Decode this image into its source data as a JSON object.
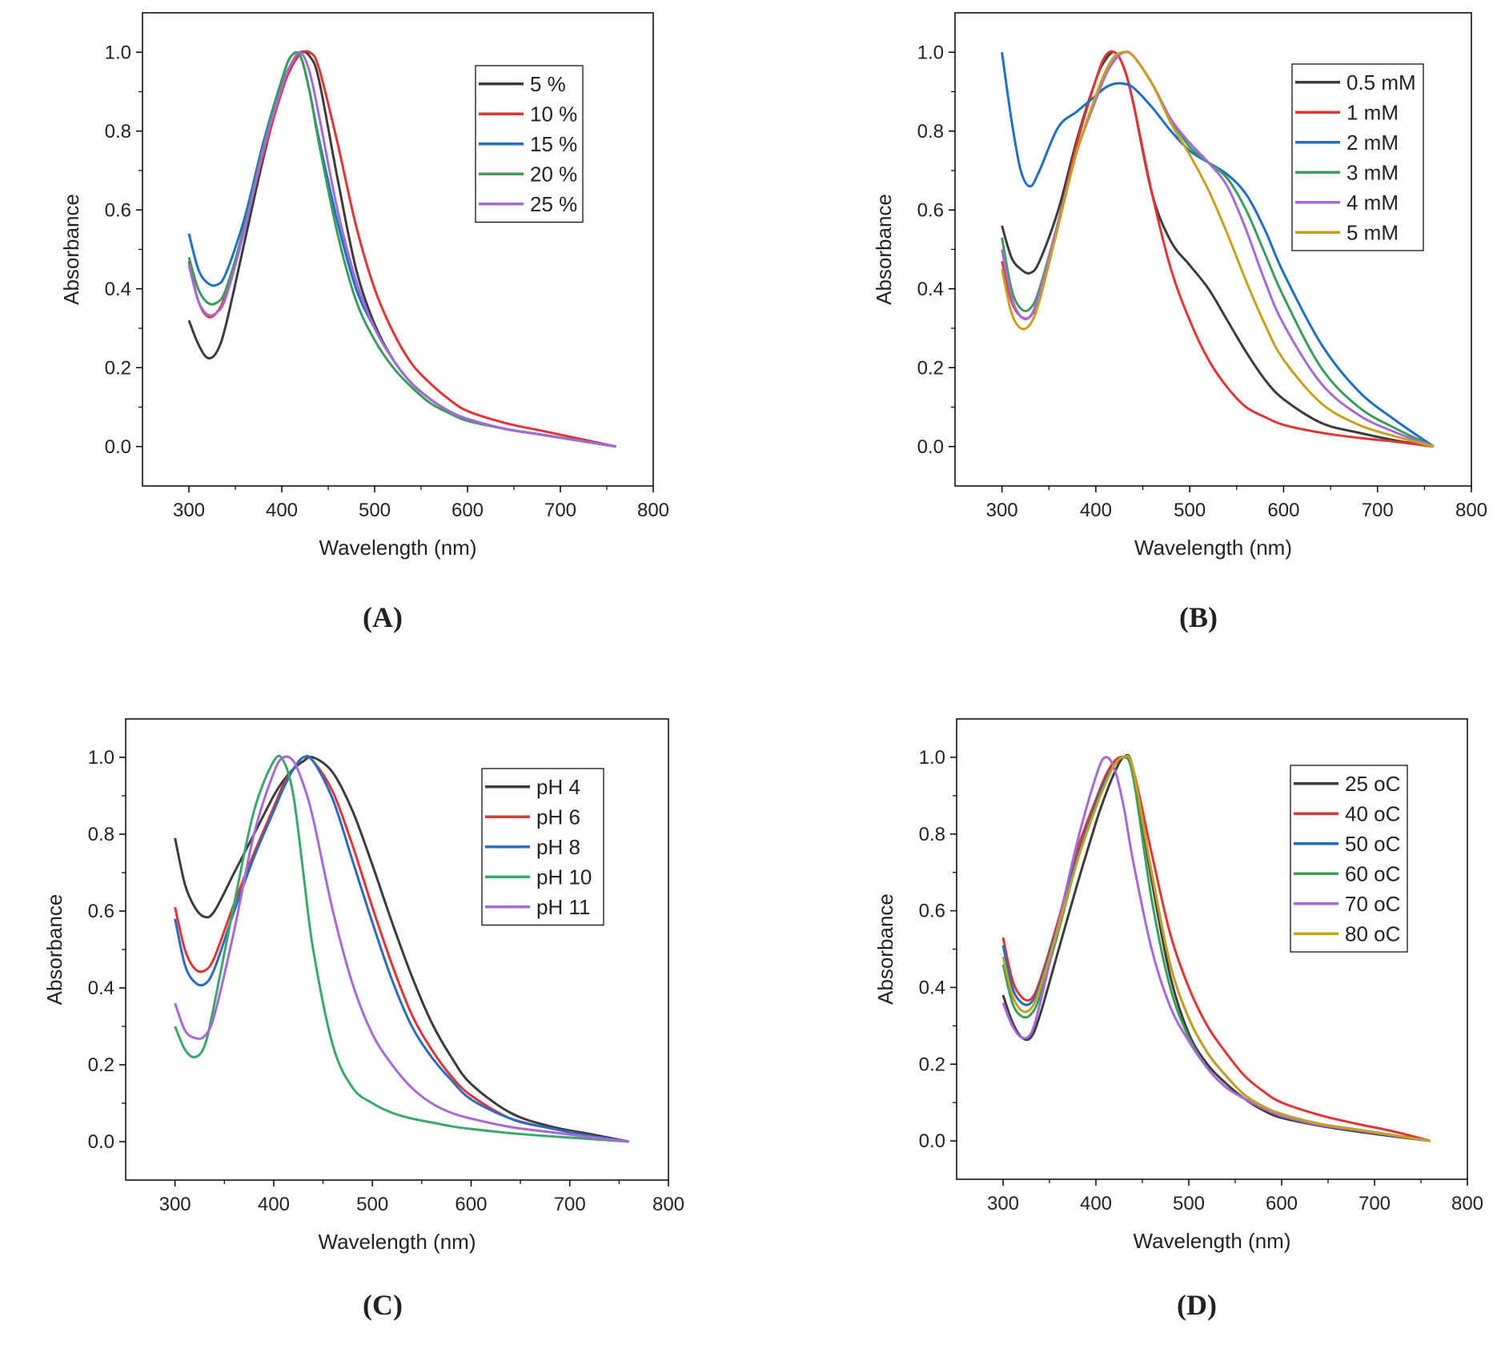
{
  "chart_data": [
    {
      "type": "line",
      "label": "(A)",
      "xlabel": "Wavelength (nm)",
      "ylabel": "Absorbance",
      "legend": "upper right",
      "xlim": [
        250,
        800
      ],
      "ylim": [
        -0.1,
        1.1
      ],
      "xticks": [
        300,
        400,
        500,
        600,
        700,
        800
      ],
      "yticks": [
        {
          "value": 0,
          "label": "0.0"
        },
        0.2,
        0.4,
        0.6,
        0.8,
        {
          "value": 1,
          "label": "1.0"
        }
      ],
      "x": [
        300,
        310,
        320,
        330,
        340,
        360,
        380,
        400,
        410,
        420,
        430,
        440,
        460,
        480,
        500,
        520,
        540,
        560,
        580,
        600,
        640,
        680,
        720,
        760
      ],
      "series": [
        {
          "name": "5 %",
          "color": "#3c3c3c",
          "values": [
            0.32,
            0.26,
            0.225,
            0.24,
            0.31,
            0.52,
            0.73,
            0.91,
            0.97,
            1.0,
            0.99,
            0.93,
            0.68,
            0.45,
            0.31,
            0.22,
            0.16,
            0.12,
            0.09,
            0.07,
            0.045,
            0.03,
            0.015,
            0
          ]
        },
        {
          "name": "10 %",
          "color": "#e03535",
          "values": [
            0.47,
            0.37,
            0.33,
            0.34,
            0.39,
            0.56,
            0.74,
            0.9,
            0.96,
            0.995,
            1.0,
            0.96,
            0.77,
            0.56,
            0.4,
            0.29,
            0.21,
            0.16,
            0.12,
            0.09,
            0.06,
            0.04,
            0.02,
            0
          ]
        },
        {
          "name": "15 %",
          "color": "#1f6fc5",
          "values": [
            0.54,
            0.45,
            0.415,
            0.41,
            0.44,
            0.58,
            0.77,
            0.93,
            0.99,
            0.99,
            0.9,
            0.78,
            0.57,
            0.4,
            0.3,
            0.22,
            0.16,
            0.12,
            0.09,
            0.07,
            0.045,
            0.03,
            0.015,
            0
          ]
        },
        {
          "name": "20 %",
          "color": "#3a9e5a",
          "values": [
            0.48,
            0.4,
            0.365,
            0.365,
            0.4,
            0.56,
            0.76,
            0.93,
            0.99,
            0.99,
            0.9,
            0.77,
            0.54,
            0.37,
            0.27,
            0.2,
            0.15,
            0.11,
            0.085,
            0.065,
            0.045,
            0.03,
            0.015,
            0
          ]
        },
        {
          "name": "25 %",
          "color": "#a56ad6",
          "values": [
            0.46,
            0.37,
            0.335,
            0.34,
            0.38,
            0.55,
            0.75,
            0.91,
            0.97,
            1.0,
            0.95,
            0.84,
            0.6,
            0.42,
            0.3,
            0.22,
            0.16,
            0.12,
            0.09,
            0.07,
            0.045,
            0.03,
            0.015,
            0
          ]
        }
      ]
    },
    {
      "type": "line",
      "label": "(B)",
      "xlabel": "Wavelength (nm)",
      "ylabel": "Absorbance",
      "legend": "upper right",
      "xlim": [
        250,
        800
      ],
      "ylim": [
        -0.1,
        1.1
      ],
      "xticks": [
        300,
        400,
        500,
        600,
        700,
        800
      ],
      "yticks": [
        {
          "value": 0,
          "label": "0.0"
        },
        0.2,
        0.4,
        0.6,
        0.8,
        {
          "value": 1,
          "label": "1.0"
        }
      ],
      "x": [
        300,
        310,
        320,
        330,
        340,
        360,
        380,
        400,
        410,
        420,
        430,
        440,
        460,
        480,
        500,
        520,
        540,
        560,
        580,
        600,
        640,
        680,
        720,
        760
      ],
      "series": [
        {
          "name": "0.5 mM",
          "color": "#3c3c3c",
          "values": [
            0.56,
            0.48,
            0.45,
            0.44,
            0.47,
            0.6,
            0.78,
            0.93,
            0.98,
            1.0,
            0.96,
            0.87,
            0.64,
            0.52,
            0.46,
            0.4,
            0.32,
            0.24,
            0.17,
            0.12,
            0.06,
            0.035,
            0.015,
            0
          ]
        },
        {
          "name": "1 mM",
          "color": "#e03535",
          "values": [
            0.47,
            0.37,
            0.33,
            0.33,
            0.38,
            0.57,
            0.77,
            0.93,
            0.99,
            1.0,
            0.96,
            0.87,
            0.64,
            0.45,
            0.32,
            0.22,
            0.15,
            0.1,
            0.075,
            0.055,
            0.035,
            0.022,
            0.012,
            0
          ]
        },
        {
          "name": "2 mM",
          "color": "#1f6fc5",
          "values": [
            1.0,
            0.83,
            0.7,
            0.66,
            0.7,
            0.81,
            0.85,
            0.89,
            0.91,
            0.92,
            0.92,
            0.91,
            0.86,
            0.8,
            0.75,
            0.72,
            0.69,
            0.64,
            0.55,
            0.44,
            0.26,
            0.14,
            0.065,
            0
          ]
        },
        {
          "name": "3 mM",
          "color": "#3a9e5a",
          "values": [
            0.53,
            0.4,
            0.35,
            0.35,
            0.4,
            0.57,
            0.75,
            0.88,
            0.94,
            0.98,
            1.0,
            0.99,
            0.92,
            0.83,
            0.76,
            0.72,
            0.68,
            0.6,
            0.49,
            0.38,
            0.2,
            0.1,
            0.045,
            0
          ]
        },
        {
          "name": "4 mM",
          "color": "#a56ad6",
          "values": [
            0.5,
            0.38,
            0.33,
            0.33,
            0.39,
            0.57,
            0.75,
            0.88,
            0.94,
            0.98,
            1.0,
            0.99,
            0.92,
            0.83,
            0.77,
            0.72,
            0.66,
            0.55,
            0.42,
            0.31,
            0.16,
            0.08,
            0.035,
            0
          ]
        },
        {
          "name": "5 mM",
          "color": "#c8a020",
          "values": [
            0.45,
            0.34,
            0.3,
            0.31,
            0.37,
            0.56,
            0.75,
            0.89,
            0.95,
            0.99,
            1.0,
            0.99,
            0.92,
            0.82,
            0.74,
            0.65,
            0.54,
            0.42,
            0.31,
            0.22,
            0.11,
            0.055,
            0.025,
            0
          ]
        }
      ]
    },
    {
      "type": "line",
      "label": "(C)",
      "xlabel": "Wavelength (nm)",
      "ylabel": "Absorbance",
      "legend": "upper right",
      "xlim": [
        250,
        800
      ],
      "ylim": [
        -0.1,
        1.1
      ],
      "xticks": [
        300,
        400,
        500,
        600,
        700,
        800
      ],
      "yticks": [
        {
          "value": 0,
          "label": "0.0"
        },
        0.2,
        0.4,
        0.6,
        0.8,
        {
          "value": 1,
          "label": "1.0"
        }
      ],
      "x": [
        300,
        310,
        320,
        330,
        340,
        360,
        380,
        400,
        410,
        420,
        430,
        440,
        460,
        480,
        500,
        520,
        540,
        560,
        580,
        600,
        640,
        680,
        720,
        760
      ],
      "series": [
        {
          "name": "pH 4",
          "color": "#3c3c3c",
          "values": [
            0.79,
            0.67,
            0.61,
            0.585,
            0.6,
            0.7,
            0.8,
            0.9,
            0.94,
            0.97,
            0.99,
            1.0,
            0.96,
            0.86,
            0.72,
            0.57,
            0.43,
            0.31,
            0.22,
            0.15,
            0.075,
            0.04,
            0.02,
            0
          ]
        },
        {
          "name": "pH 6",
          "color": "#e03535",
          "values": [
            0.61,
            0.5,
            0.45,
            0.445,
            0.48,
            0.62,
            0.75,
            0.87,
            0.93,
            0.97,
            1.0,
            0.99,
            0.91,
            0.77,
            0.61,
            0.46,
            0.33,
            0.24,
            0.17,
            0.12,
            0.06,
            0.035,
            0.015,
            0
          ]
        },
        {
          "name": "pH 8",
          "color": "#2b6cc0",
          "values": [
            0.58,
            0.46,
            0.415,
            0.41,
            0.45,
            0.6,
            0.74,
            0.86,
            0.92,
            0.97,
            1.0,
            0.99,
            0.89,
            0.73,
            0.57,
            0.42,
            0.3,
            0.22,
            0.16,
            0.11,
            0.06,
            0.035,
            0.015,
            0
          ]
        },
        {
          "name": "pH 10",
          "color": "#3aa86a",
          "values": [
            0.3,
            0.24,
            0.22,
            0.25,
            0.36,
            0.62,
            0.86,
            0.99,
            0.99,
            0.9,
            0.7,
            0.5,
            0.25,
            0.14,
            0.1,
            0.075,
            0.06,
            0.05,
            0.04,
            0.033,
            0.022,
            0.014,
            0.007,
            0
          ]
        },
        {
          "name": "pH 11",
          "color": "#a56ad6",
          "values": [
            0.36,
            0.29,
            0.27,
            0.275,
            0.33,
            0.55,
            0.8,
            0.96,
            1.0,
            0.99,
            0.93,
            0.84,
            0.6,
            0.41,
            0.28,
            0.2,
            0.14,
            0.1,
            0.075,
            0.06,
            0.038,
            0.025,
            0.012,
            0
          ]
        }
      ]
    },
    {
      "type": "line",
      "label": "(D)",
      "xlabel": "Wavelength (nm)",
      "ylabel": "Absorbance",
      "legend": "upper right",
      "xlim": [
        250,
        800
      ],
      "ylim": [
        -0.1,
        1.1
      ],
      "xticks": [
        300,
        400,
        500,
        600,
        700,
        800
      ],
      "yticks": [
        {
          "value": 0,
          "label": "0.0"
        },
        0.2,
        0.4,
        0.6,
        0.8,
        {
          "value": 1,
          "label": "1.0"
        }
      ],
      "x": [
        300,
        310,
        320,
        330,
        340,
        360,
        380,
        400,
        410,
        420,
        430,
        440,
        460,
        480,
        500,
        520,
        540,
        560,
        580,
        600,
        640,
        680,
        720,
        760
      ],
      "series": [
        {
          "name": "25 oC",
          "color": "#3c3c3c",
          "values": [
            0.38,
            0.31,
            0.27,
            0.27,
            0.33,
            0.5,
            0.67,
            0.83,
            0.9,
            0.96,
            1.0,
            0.97,
            0.68,
            0.43,
            0.28,
            0.2,
            0.15,
            0.11,
            0.08,
            0.06,
            0.04,
            0.025,
            0.012,
            0
          ]
        },
        {
          "name": "40 oC",
          "color": "#e03535",
          "values": [
            0.53,
            0.42,
            0.375,
            0.37,
            0.42,
            0.58,
            0.76,
            0.89,
            0.95,
            0.99,
            1.0,
            0.97,
            0.75,
            0.54,
            0.4,
            0.3,
            0.23,
            0.17,
            0.13,
            0.1,
            0.068,
            0.045,
            0.025,
            0
          ]
        },
        {
          "name": "50 oC",
          "color": "#1f6fc5",
          "values": [
            0.51,
            0.4,
            0.36,
            0.36,
            0.41,
            0.57,
            0.74,
            0.88,
            0.94,
            0.98,
            1.0,
            0.96,
            0.7,
            0.46,
            0.32,
            0.23,
            0.17,
            0.12,
            0.09,
            0.07,
            0.045,
            0.03,
            0.015,
            0
          ]
        },
        {
          "name": "60 oC",
          "color": "#3a9e5a",
          "values": [
            0.46,
            0.36,
            0.325,
            0.33,
            0.38,
            0.55,
            0.73,
            0.87,
            0.93,
            0.98,
            1.0,
            0.95,
            0.63,
            0.4,
            0.27,
            0.19,
            0.14,
            0.11,
            0.085,
            0.065,
            0.042,
            0.028,
            0.014,
            0
          ]
        },
        {
          "name": "70 oC",
          "color": "#a56ad6",
          "values": [
            0.36,
            0.3,
            0.27,
            0.28,
            0.36,
            0.57,
            0.78,
            0.95,
            1.0,
            0.97,
            0.87,
            0.73,
            0.5,
            0.35,
            0.26,
            0.19,
            0.14,
            0.11,
            0.085,
            0.065,
            0.042,
            0.028,
            0.014,
            0
          ]
        },
        {
          "name": "80 oC",
          "color": "#c8a020",
          "values": [
            0.48,
            0.38,
            0.34,
            0.345,
            0.4,
            0.56,
            0.73,
            0.87,
            0.93,
            0.98,
            1.0,
            0.97,
            0.7,
            0.46,
            0.32,
            0.23,
            0.17,
            0.12,
            0.09,
            0.07,
            0.045,
            0.03,
            0.015,
            0
          ]
        }
      ]
    }
  ]
}
